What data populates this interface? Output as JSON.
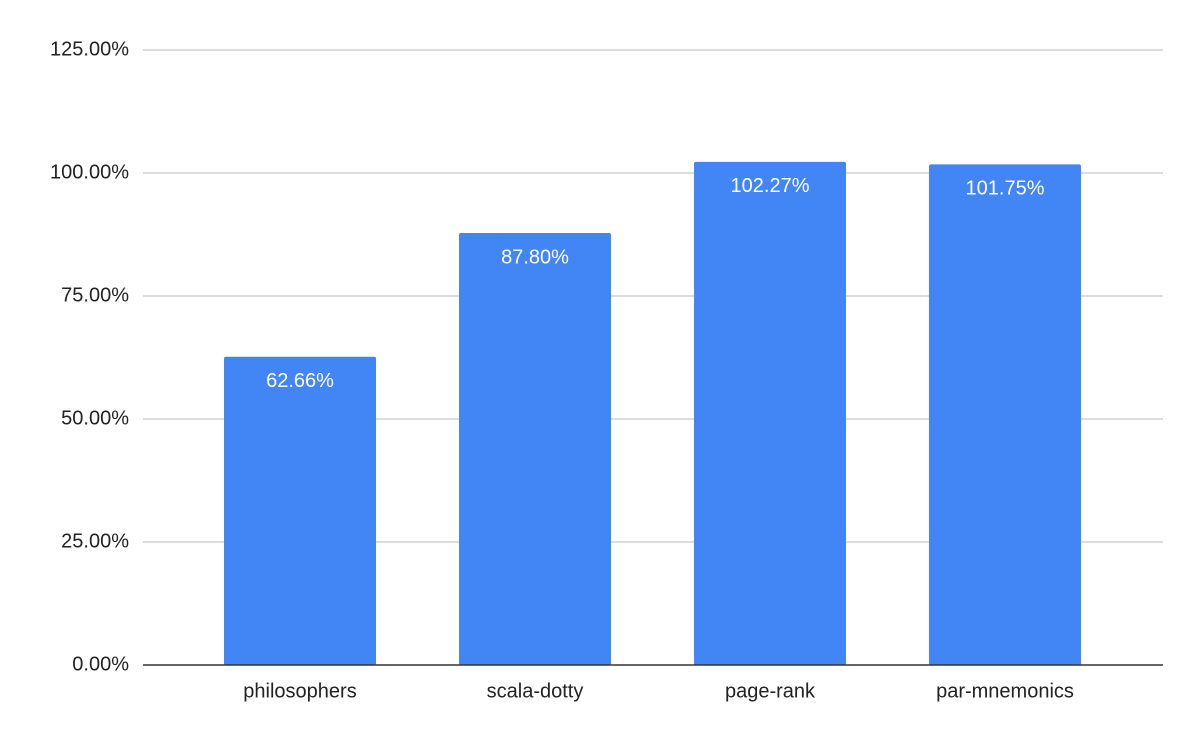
{
  "chart_data": {
    "type": "bar",
    "categories": [
      "philosophers",
      "scala-dotty",
      "page-rank",
      "par-mnemonics"
    ],
    "values": [
      62.66,
      87.8,
      102.27,
      101.75
    ],
    "value_labels": [
      "62.66%",
      "87.80%",
      "102.27%",
      "101.75%"
    ],
    "color": "#4285f4",
    "ylim": [
      0,
      125
    ],
    "yticks": [
      {
        "value": 0,
        "label": "0.00%"
      },
      {
        "value": 25,
        "label": "25.00%"
      },
      {
        "value": 50,
        "label": "50.00%"
      },
      {
        "value": 75,
        "label": "75.00%"
      },
      {
        "value": 100,
        "label": "100.00%"
      },
      {
        "value": 125,
        "label": "125.00%"
      }
    ],
    "grid": true
  }
}
